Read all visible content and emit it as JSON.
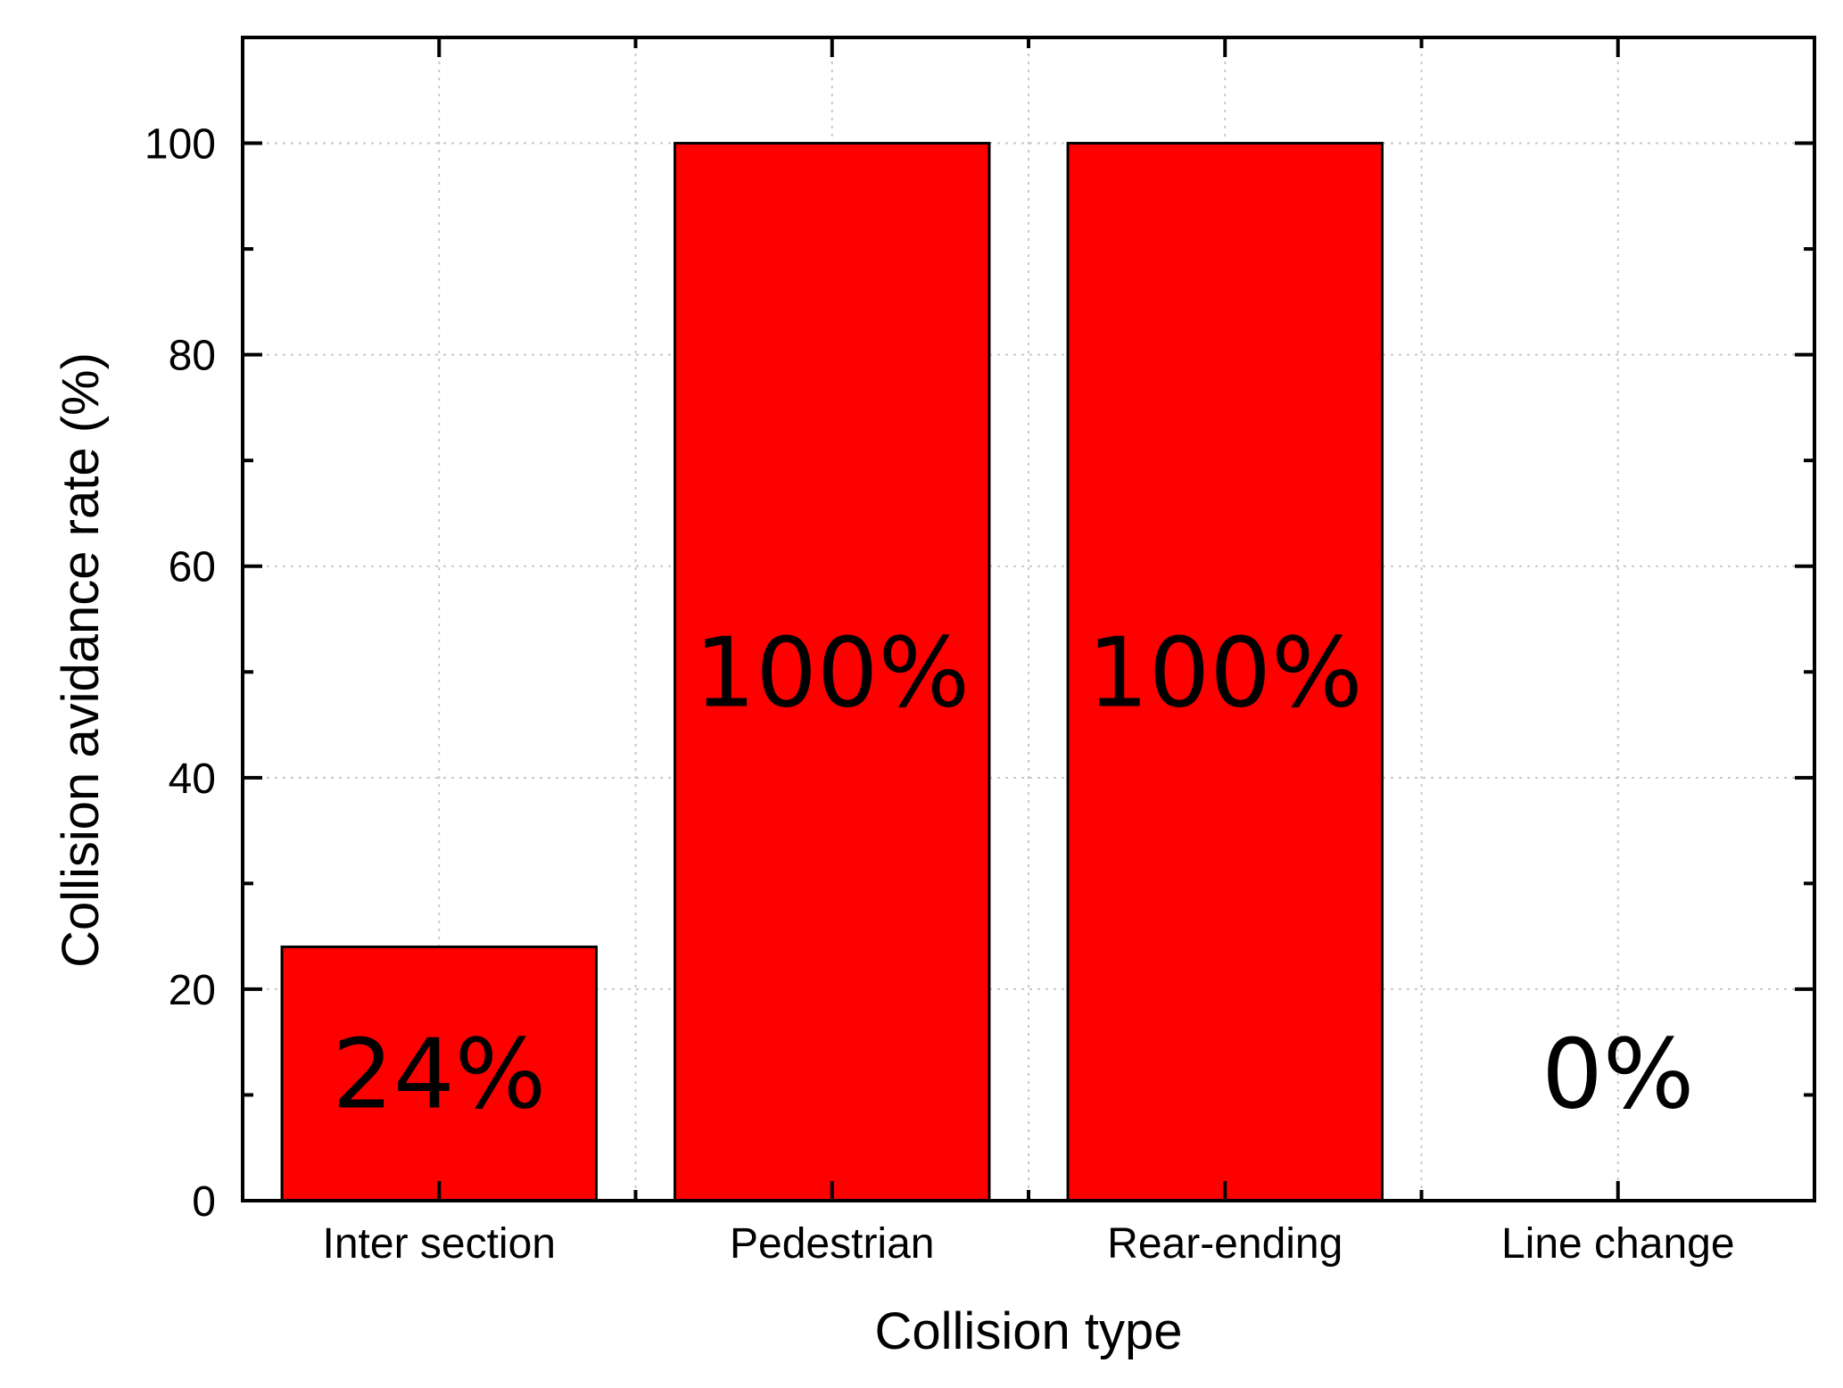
{
  "chart_data": {
    "type": "bar",
    "title": "",
    "xlabel": "Collision type",
    "ylabel": "Collision avidance rate (%)",
    "categories": [
      "Inter section",
      "Pedestrian",
      "Rear-ending",
      "Line change"
    ],
    "values": [
      24,
      100,
      100,
      0
    ],
    "data_labels": [
      "24%",
      "100%",
      "100%",
      "0%"
    ],
    "ylim": [
      0,
      110
    ],
    "yticks": [
      0,
      20,
      40,
      60,
      80,
      100
    ],
    "ytick_labels": [
      "0",
      "20",
      "40",
      "60",
      "80",
      "100"
    ],
    "grid": true,
    "legend": "none",
    "colors": {
      "bar_fill": "#ff0000",
      "bar_stroke": "#000000",
      "grid": "#c8c8c8",
      "axis": "#000000"
    }
  }
}
